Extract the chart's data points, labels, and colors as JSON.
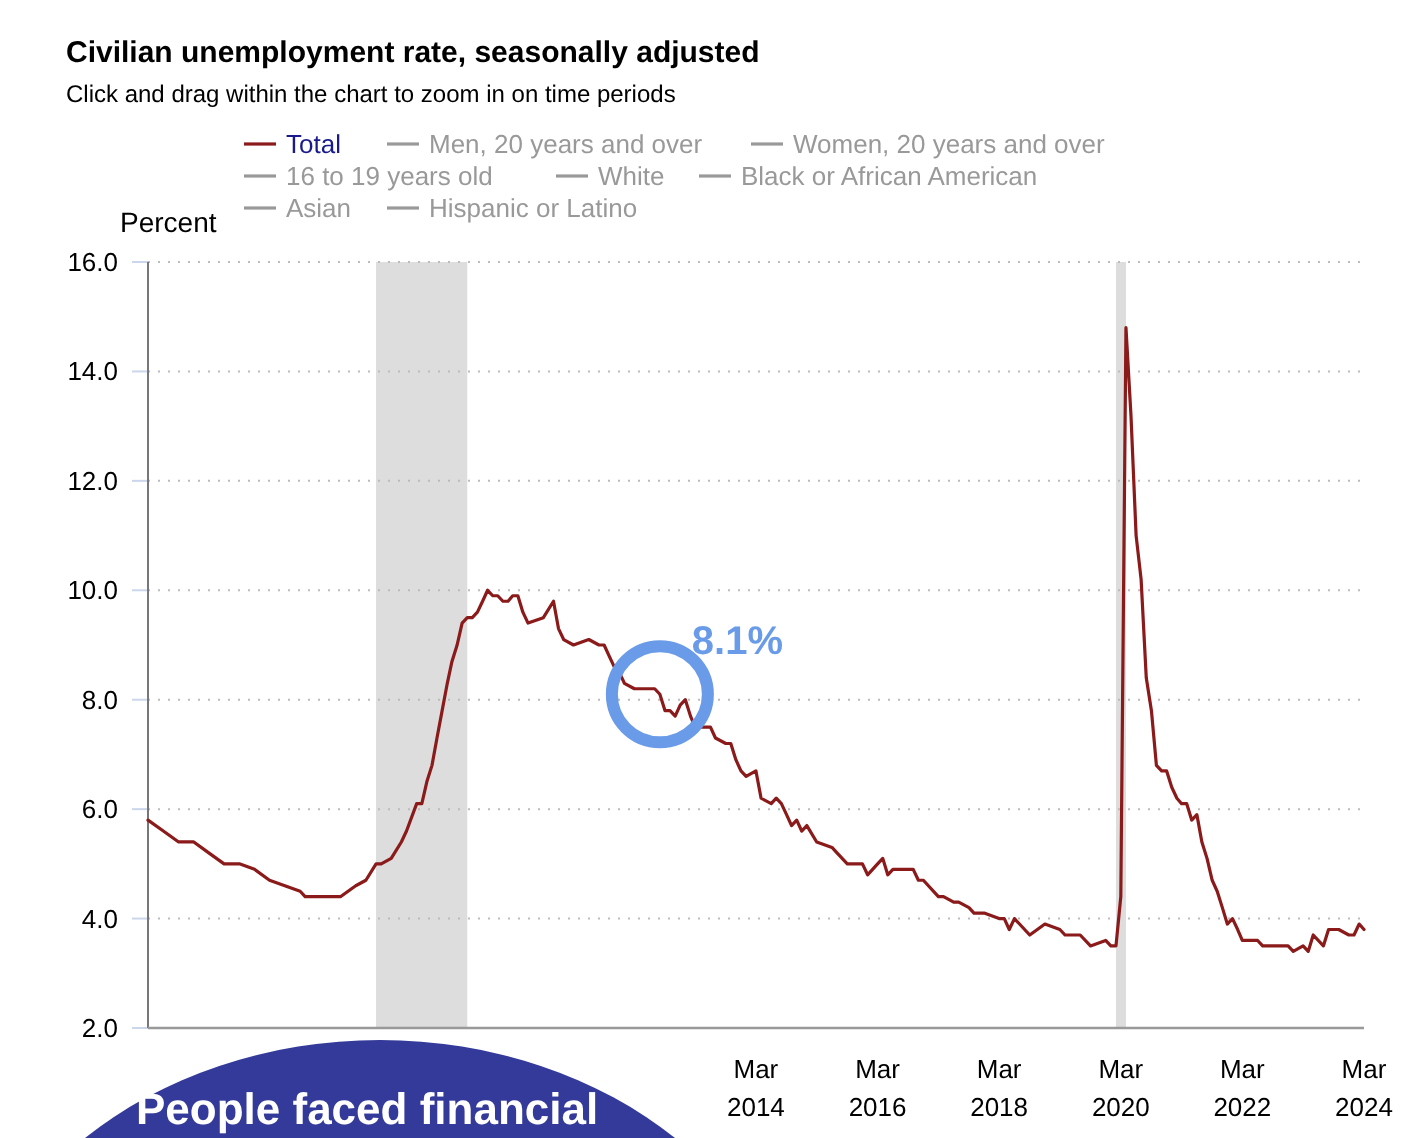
{
  "chart_data": {
    "type": "line",
    "title": "Civilian unemployment rate, seasonally adjusted",
    "subtitle": "Click and drag within the chart to zoom in on time periods",
    "ylabel": "Percent",
    "xlim": [
      "2004-03",
      "2024-03"
    ],
    "xticks": [
      {
        "value": "2014-03",
        "label": "Mar 2014"
      },
      {
        "value": "2016-03",
        "label": "Mar 2016"
      },
      {
        "value": "2018-03",
        "label": "Mar 2018"
      },
      {
        "value": "2020-03",
        "label": "Mar 2020"
      },
      {
        "value": "2022-03",
        "label": "Mar 2022"
      },
      {
        "value": "2024-03",
        "label": "Mar 2024"
      }
    ],
    "ylim": [
      2,
      16
    ],
    "yticks": [
      {
        "value": 2,
        "label": "2.0"
      },
      {
        "value": 4,
        "label": "4.0"
      },
      {
        "value": 6,
        "label": "6.0"
      },
      {
        "value": 8,
        "label": "8.0"
      },
      {
        "value": 10,
        "label": "10.0"
      },
      {
        "value": 12,
        "label": "12.0"
      },
      {
        "value": 14,
        "label": "14.0"
      },
      {
        "value": 16,
        "label": "16.0"
      }
    ],
    "grid": "y",
    "legend": "top",
    "marker": "none",
    "line_style": "solid",
    "bands": [
      {
        "axis": "x",
        "from": "2007-12",
        "to": "2009-06",
        "color": "#dddddd"
      },
      {
        "axis": "x",
        "from": "2020-02",
        "to": "2020-04",
        "color": "#dddddd"
      }
    ],
    "annotations": [
      {
        "text": "8.1%",
        "x": "2012-08",
        "y": 8.1
      },
      "People faced financial"
    ],
    "x": [
      "2004-03",
      "2004-06",
      "2004-09",
      "2004-12",
      "2005-03",
      "2005-06",
      "2005-09",
      "2005-12",
      "2006-03",
      "2006-06",
      "2006-09",
      "2006-10",
      "2006-12",
      "2007-03",
      "2007-05",
      "2007-08",
      "2007-10",
      "2007-12",
      "2008-01",
      "2008-03",
      "2008-05",
      "2008-06",
      "2008-08",
      "2008-09",
      "2008-10",
      "2008-11",
      "2008-12",
      "2009-01",
      "2009-02",
      "2009-03",
      "2009-04",
      "2009-05",
      "2009-06",
      "2009-07",
      "2009-08",
      "2009-09",
      "2009-10",
      "2009-11",
      "2009-12",
      "2010-01",
      "2010-02",
      "2010-03",
      "2010-04",
      "2010-05",
      "2010-06",
      "2010-09",
      "2010-11",
      "2010-12",
      "2011-01",
      "2011-03",
      "2011-06",
      "2011-08",
      "2011-09",
      "2011-10",
      "2011-11",
      "2011-12",
      "2012-01",
      "2012-03",
      "2012-06",
      "2012-07",
      "2012-08",
      "2012-09",
      "2012-10",
      "2012-11",
      "2012-12",
      "2013-01",
      "2013-02",
      "2013-03",
      "2013-05",
      "2013-06",
      "2013-07",
      "2013-09",
      "2013-10",
      "2013-11",
      "2013-12",
      "2014-01",
      "2014-03",
      "2014-04",
      "2014-06",
      "2014-07",
      "2014-08",
      "2014-09",
      "2014-10",
      "2014-11",
      "2014-12",
      "2015-01",
      "2015-03",
      "2015-06",
      "2015-07",
      "2015-09",
      "2015-12",
      "2016-01",
      "2016-03",
      "2016-04",
      "2016-05",
      "2016-06",
      "2016-08",
      "2016-10",
      "2016-11",
      "2016-12",
      "2017-03",
      "2017-04",
      "2017-06",
      "2017-07",
      "2017-09",
      "2017-10",
      "2017-12",
      "2018-03",
      "2018-04",
      "2018-05",
      "2018-06",
      "2018-09",
      "2018-12",
      "2019-03",
      "2019-04",
      "2019-07",
      "2019-09",
      "2019-12",
      "2020-01",
      "2020-02",
      "2020-03",
      "2020-04",
      "2020-05",
      "2020-06",
      "2020-07",
      "2020-08",
      "2020-09",
      "2020-10",
      "2020-11",
      "2020-12",
      "2021-01",
      "2021-02",
      "2021-03",
      "2021-04",
      "2021-05",
      "2021-06",
      "2021-07",
      "2021-08",
      "2021-09",
      "2021-10",
      "2021-11",
      "2021-12",
      "2022-01",
      "2022-02",
      "2022-03",
      "2022-06",
      "2022-07",
      "2022-09",
      "2022-12",
      "2023-01",
      "2023-03",
      "2023-04",
      "2023-05",
      "2023-07",
      "2023-08",
      "2023-10",
      "2023-12",
      "2024-01",
      "2024-02",
      "2024-03"
    ],
    "series": [
      {
        "name": "Total",
        "color": "#8b1a1a",
        "values": [
          5.8,
          5.6,
          5.4,
          5.4,
          5.2,
          5.0,
          5.0,
          4.9,
          4.7,
          4.6,
          4.5,
          4.4,
          4.4,
          4.4,
          4.4,
          4.6,
          4.7,
          5.0,
          5.0,
          5.1,
          5.4,
          5.6,
          6.1,
          6.1,
          6.5,
          6.8,
          7.3,
          7.8,
          8.3,
          8.7,
          9.0,
          9.4,
          9.5,
          9.5,
          9.6,
          9.8,
          10.0,
          9.9,
          9.9,
          9.8,
          9.8,
          9.9,
          9.9,
          9.6,
          9.4,
          9.5,
          9.8,
          9.3,
          9.1,
          9.0,
          9.1,
          9.0,
          9.0,
          8.8,
          8.6,
          8.5,
          8.3,
          8.2,
          8.2,
          8.2,
          8.1,
          7.8,
          7.8,
          7.7,
          7.9,
          8.0,
          7.7,
          7.5,
          7.5,
          7.5,
          7.3,
          7.2,
          7.2,
          6.9,
          6.7,
          6.6,
          6.7,
          6.2,
          6.1,
          6.2,
          6.1,
          5.9,
          5.7,
          5.8,
          5.6,
          5.7,
          5.4,
          5.3,
          5.2,
          5.0,
          5.0,
          4.8,
          5.0,
          5.1,
          4.8,
          4.9,
          4.9,
          4.9,
          4.7,
          4.7,
          4.4,
          4.4,
          4.3,
          4.3,
          4.2,
          4.1,
          4.1,
          4.0,
          4.0,
          3.8,
          4.0,
          3.7,
          3.9,
          3.8,
          3.7,
          3.7,
          3.5,
          3.6,
          3.5,
          3.5,
          4.4,
          14.8,
          13.2,
          11.0,
          10.2,
          8.4,
          7.8,
          6.8,
          6.7,
          6.7,
          6.4,
          6.2,
          6.1,
          6.1,
          5.8,
          5.9,
          5.4,
          5.1,
          4.7,
          4.5,
          4.2,
          3.9,
          4.0,
          3.8,
          3.6,
          3.6,
          3.5,
          3.5,
          3.5,
          3.4,
          3.5,
          3.4,
          3.7,
          3.5,
          3.8,
          3.8,
          3.7,
          3.7,
          3.9,
          3.8
        ]
      },
      {
        "name": "Men, 20 years and over",
        "color": "#999999",
        "values": [
          null,
          null,
          null,
          null,
          null,
          null,
          null,
          null,
          null,
          null,
          null,
          null,
          null,
          null,
          null,
          null,
          null,
          null,
          null,
          null,
          null,
          null,
          null,
          null,
          null,
          null,
          null,
          null,
          null,
          null,
          null,
          null,
          null,
          null,
          null,
          null,
          null,
          null,
          null,
          null,
          null,
          null,
          null,
          null,
          null,
          null,
          null,
          null,
          null,
          null,
          null,
          null,
          null,
          null,
          null,
          null,
          null,
          null,
          null,
          null,
          null,
          null,
          null,
          null,
          null,
          null,
          null,
          null,
          null,
          null,
          null,
          null,
          null,
          null,
          null,
          null,
          null,
          null,
          null,
          null,
          null,
          null,
          null,
          null,
          null,
          null,
          null,
          null,
          null,
          null,
          null,
          null,
          null,
          null,
          null,
          null,
          null,
          null,
          null,
          null,
          null,
          null,
          null,
          null,
          null,
          null,
          null,
          null,
          null,
          null,
          null,
          null,
          null,
          null,
          null,
          null,
          null,
          null,
          null,
          null,
          null,
          null,
          null,
          null,
          null,
          null,
          null,
          null,
          null,
          null,
          null,
          null,
          null,
          null,
          null,
          null,
          null,
          null,
          null,
          null,
          null,
          null,
          null,
          null,
          null,
          null,
          null,
          null,
          null,
          null,
          null,
          null,
          null,
          null,
          null,
          null,
          null,
          null,
          null,
          null
        ]
      },
      {
        "name": "Women, 20 years and over",
        "color": "#999999",
        "values": [
          null,
          null,
          null,
          null,
          null,
          null,
          null,
          null,
          null,
          null,
          null,
          null,
          null,
          null,
          null,
          null,
          null,
          null,
          null,
          null,
          null,
          null,
          null,
          null,
          null,
          null,
          null,
          null,
          null,
          null,
          null,
          null,
          null,
          null,
          null,
          null,
          null,
          null,
          null,
          null,
          null,
          null,
          null,
          null,
          null,
          null,
          null,
          null,
          null,
          null,
          null,
          null,
          null,
          null,
          null,
          null,
          null,
          null,
          null,
          null,
          null,
          null,
          null,
          null,
          null,
          null,
          null,
          null,
          null,
          null,
          null,
          null,
          null,
          null,
          null,
          null,
          null,
          null,
          null,
          null,
          null,
          null,
          null,
          null,
          null,
          null,
          null,
          null,
          null,
          null,
          null,
          null,
          null,
          null,
          null,
          null,
          null,
          null,
          null,
          null,
          null,
          null,
          null,
          null,
          null,
          null,
          null,
          null,
          null,
          null,
          null,
          null,
          null,
          null,
          null,
          null,
          null,
          null,
          null,
          null,
          null,
          null,
          null,
          null,
          null,
          null,
          null,
          null,
          null,
          null,
          null,
          null,
          null,
          null,
          null,
          null,
          null,
          null,
          null,
          null,
          null,
          null,
          null,
          null,
          null,
          null,
          null,
          null,
          null,
          null,
          null,
          null,
          null,
          null,
          null,
          null,
          null,
          null,
          null,
          null
        ]
      },
      {
        "name": "16 to 19 years old",
        "color": "#999999",
        "values": [
          null,
          null,
          null,
          null,
          null,
          null,
          null,
          null,
          null,
          null,
          null,
          null,
          null,
          null,
          null,
          null,
          null,
          null,
          null,
          null,
          null,
          null,
          null,
          null,
          null,
          null,
          null,
          null,
          null,
          null,
          null,
          null,
          null,
          null,
          null,
          null,
          null,
          null,
          null,
          null,
          null,
          null,
          null,
          null,
          null,
          null,
          null,
          null,
          null,
          null,
          null,
          null,
          null,
          null,
          null,
          null,
          null,
          null,
          null,
          null,
          null,
          null,
          null,
          null,
          null,
          null,
          null,
          null,
          null,
          null,
          null,
          null,
          null,
          null,
          null,
          null,
          null,
          null,
          null,
          null,
          null,
          null,
          null,
          null,
          null,
          null,
          null,
          null,
          null,
          null,
          null,
          null,
          null,
          null,
          null,
          null,
          null,
          null,
          null,
          null,
          null,
          null,
          null,
          null,
          null,
          null,
          null,
          null,
          null,
          null,
          null,
          null,
          null,
          null,
          null,
          null,
          null,
          null,
          null,
          null,
          null,
          null,
          null,
          null,
          null,
          null,
          null,
          null,
          null,
          null,
          null,
          null,
          null,
          null,
          null,
          null,
          null,
          null,
          null,
          null,
          null,
          null,
          null,
          null,
          null,
          null,
          null,
          null,
          null,
          null,
          null,
          null,
          null,
          null,
          null,
          null,
          null,
          null,
          null,
          null
        ]
      },
      {
        "name": "White",
        "color": "#999999",
        "values": [
          null,
          null,
          null,
          null,
          null,
          null,
          null,
          null,
          null,
          null,
          null,
          null,
          null,
          null,
          null,
          null,
          null,
          null,
          null,
          null,
          null,
          null,
          null,
          null,
          null,
          null,
          null,
          null,
          null,
          null,
          null,
          null,
          null,
          null,
          null,
          null,
          null,
          null,
          null,
          null,
          null,
          null,
          null,
          null,
          null,
          null,
          null,
          null,
          null,
          null,
          null,
          null,
          null,
          null,
          null,
          null,
          null,
          null,
          null,
          null,
          null,
          null,
          null,
          null,
          null,
          null,
          null,
          null,
          null,
          null,
          null,
          null,
          null,
          null,
          null,
          null,
          null,
          null,
          null,
          null,
          null,
          null,
          null,
          null,
          null,
          null,
          null,
          null,
          null,
          null,
          null,
          null,
          null,
          null,
          null,
          null,
          null,
          null,
          null,
          null,
          null,
          null,
          null,
          null,
          null,
          null,
          null,
          null,
          null,
          null,
          null,
          null,
          null,
          null,
          null,
          null,
          null,
          null,
          null,
          null,
          null,
          null,
          null,
          null,
          null,
          null,
          null,
          null,
          null,
          null,
          null,
          null,
          null,
          null,
          null,
          null,
          null,
          null,
          null,
          null,
          null,
          null,
          null,
          null,
          null,
          null,
          null,
          null,
          null,
          null,
          null,
          null,
          null,
          null,
          null,
          null,
          null,
          null,
          null,
          null
        ]
      },
      {
        "name": "Black or African American",
        "color": "#999999",
        "values": [
          null,
          null,
          null,
          null,
          null,
          null,
          null,
          null,
          null,
          null,
          null,
          null,
          null,
          null,
          null,
          null,
          null,
          null,
          null,
          null,
          null,
          null,
          null,
          null,
          null,
          null,
          null,
          null,
          null,
          null,
          null,
          null,
          null,
          null,
          null,
          null,
          null,
          null,
          null,
          null,
          null,
          null,
          null,
          null,
          null,
          null,
          null,
          null,
          null,
          null,
          null,
          null,
          null,
          null,
          null,
          null,
          null,
          null,
          null,
          null,
          null,
          null,
          null,
          null,
          null,
          null,
          null,
          null,
          null,
          null,
          null,
          null,
          null,
          null,
          null,
          null,
          null,
          null,
          null,
          null,
          null,
          null,
          null,
          null,
          null,
          null,
          null,
          null,
          null,
          null,
          null,
          null,
          null,
          null,
          null,
          null,
          null,
          null,
          null,
          null,
          null,
          null,
          null,
          null,
          null,
          null,
          null,
          null,
          null,
          null,
          null,
          null,
          null,
          null,
          null,
          null,
          null,
          null,
          null,
          null,
          null,
          null,
          null,
          null,
          null,
          null,
          null,
          null,
          null,
          null,
          null,
          null,
          null,
          null,
          null,
          null,
          null,
          null,
          null,
          null,
          null,
          null,
          null,
          null,
          null,
          null,
          null,
          null,
          null,
          null,
          null,
          null,
          null,
          null,
          null,
          null,
          null,
          null,
          null,
          null
        ]
      },
      {
        "name": "Asian",
        "color": "#999999",
        "values": [
          null,
          null,
          null,
          null,
          null,
          null,
          null,
          null,
          null,
          null,
          null,
          null,
          null,
          null,
          null,
          null,
          null,
          null,
          null,
          null,
          null,
          null,
          null,
          null,
          null,
          null,
          null,
          null,
          null,
          null,
          null,
          null,
          null,
          null,
          null,
          null,
          null,
          null,
          null,
          null,
          null,
          null,
          null,
          null,
          null,
          null,
          null,
          null,
          null,
          null,
          null,
          null,
          null,
          null,
          null,
          null,
          null,
          null,
          null,
          null,
          null,
          null,
          null,
          null,
          null,
          null,
          null,
          null,
          null,
          null,
          null,
          null,
          null,
          null,
          null,
          null,
          null,
          null,
          null,
          null,
          null,
          null,
          null,
          null,
          null,
          null,
          null,
          null,
          null,
          null,
          null,
          null,
          null,
          null,
          null,
          null,
          null,
          null,
          null,
          null,
          null,
          null,
          null,
          null,
          null,
          null,
          null,
          null,
          null,
          null,
          null,
          null,
          null,
          null,
          null,
          null,
          null,
          null,
          null,
          null,
          null,
          null,
          null,
          null,
          null,
          null,
          null,
          null,
          null,
          null,
          null,
          null,
          null,
          null,
          null,
          null,
          null,
          null,
          null,
          null,
          null,
          null,
          null,
          null,
          null,
          null,
          null,
          null,
          null,
          null,
          null,
          null,
          null,
          null,
          null,
          null,
          null,
          null,
          null,
          null
        ]
      },
      {
        "name": "Hispanic or Latino",
        "color": "#999999",
        "values": [
          null,
          null,
          null,
          null,
          null,
          null,
          null,
          null,
          null,
          null,
          null,
          null,
          null,
          null,
          null,
          null,
          null,
          null,
          null,
          null,
          null,
          null,
          null,
          null,
          null,
          null,
          null,
          null,
          null,
          null,
          null,
          null,
          null,
          null,
          null,
          null,
          null,
          null,
          null,
          null,
          null,
          null,
          null,
          null,
          null,
          null,
          null,
          null,
          null,
          null,
          null,
          null,
          null,
          null,
          null,
          null,
          null,
          null,
          null,
          null,
          null,
          null,
          null,
          null,
          null,
          null,
          null,
          null,
          null,
          null,
          null,
          null,
          null,
          null,
          null,
          null,
          null,
          null,
          null,
          null,
          null,
          null,
          null,
          null,
          null,
          null,
          null,
          null,
          null,
          null,
          null,
          null,
          null,
          null,
          null,
          null,
          null,
          null,
          null,
          null,
          null,
          null,
          null,
          null,
          null,
          null,
          null,
          null,
          null,
          null,
          null,
          null,
          null,
          null,
          null,
          null,
          null,
          null,
          null,
          null,
          null,
          null,
          null,
          null,
          null,
          null,
          null,
          null,
          null,
          null,
          null,
          null,
          null,
          null,
          null,
          null,
          null,
          null,
          null,
          null,
          null,
          null,
          null,
          null,
          null,
          null,
          null,
          null,
          null,
          null,
          null,
          null,
          null,
          null,
          null,
          null,
          null,
          null,
          null,
          null
        ]
      }
    ]
  }
}
